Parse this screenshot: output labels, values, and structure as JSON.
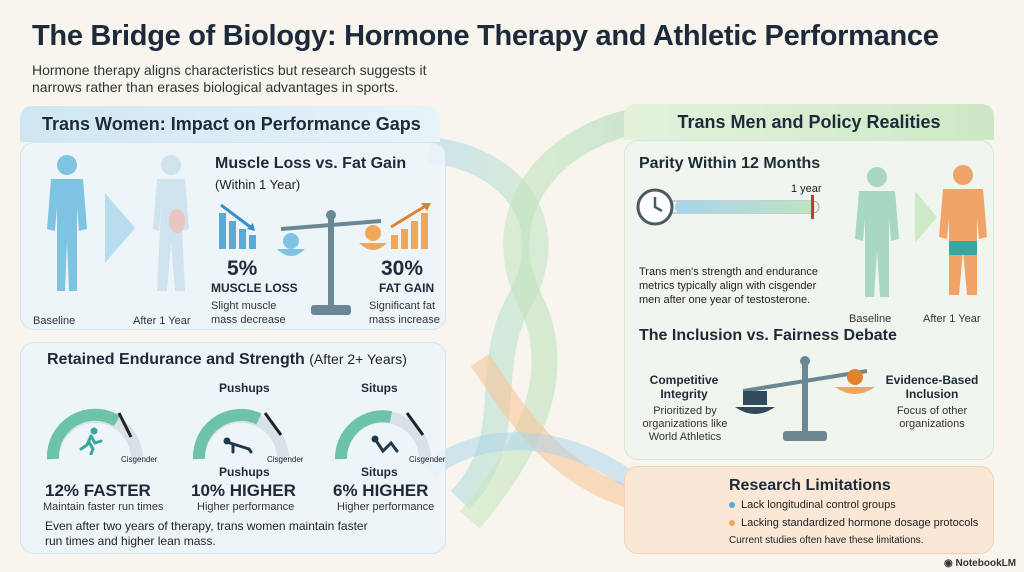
{
  "header": {
    "title": "The Bridge of Biology: Hormone Therapy and Athletic Performance",
    "subtitle": "Hormone therapy aligns characteristics but research suggests it narrows rather than erases biological advantages in sports."
  },
  "left": {
    "title": "Trans Women: Impact on Performance Gaps",
    "baseline_label": "Baseline",
    "after_label": "After 1 Year",
    "muscle_fat": {
      "title": "Muscle Loss vs. Fat Gain",
      "subtitle": "(Within 1 Year)",
      "loss_value": "5%",
      "loss_label": "MUSCLE LOSS",
      "loss_desc": "Slight muscle mass decrease",
      "gain_value": "30%",
      "gain_label": "FAT GAIN",
      "gain_desc": "Significant fat mass increase"
    },
    "retained": {
      "title": "Retained Endurance and Strength",
      "title_suffix": "(After 2+ Years)",
      "gauges": [
        {
          "top_label": "",
          "cis_label": "Cisgender",
          "bottom_label": "",
          "value": "12% FASTER",
          "desc": "Maintain faster run times",
          "icon": "runner-icon"
        },
        {
          "top_label": "Pushups",
          "cis_label": "Cisgender",
          "bottom_label": "Pushups",
          "value": "10% HIGHER",
          "desc": "Higher performance",
          "icon": "pushup-icon"
        },
        {
          "top_label": "Situps",
          "cis_label": "Cisgender",
          "bottom_label": "Situps",
          "value": "6% HIGHER",
          "desc": "Higher performance",
          "icon": "situp-icon"
        }
      ],
      "footer": "Even after two years of therapy, trans women maintain faster run times and higher lean mass."
    }
  },
  "right": {
    "title": "Trans Men and Policy Realities",
    "parity": {
      "title": "Parity Within 12 Months",
      "timeline_label": "1 year",
      "desc": "Trans men's strength and endurance metrics typically align with cisgender men after one year of testosterone.",
      "baseline_label": "Baseline",
      "after_label": "After 1 Year"
    },
    "debate": {
      "title": "The Inclusion vs. Fairness Debate",
      "left_title": "Competitive Integrity",
      "left_desc": "Prioritized by organizations like World Athletics",
      "right_title": "Evidence-Based Inclusion",
      "right_desc": "Focus of other organizations"
    },
    "limitations": {
      "title": "Research Limitations",
      "items": [
        "Lack longitudinal control groups",
        "Lacking standardized hormone dosage protocols"
      ],
      "footer": "Current studies often have these limitations."
    }
  },
  "brand": "NotebookLM",
  "colors": {
    "blue": "#5aa9d6",
    "green": "#8fcf86",
    "orange": "#f2a65a",
    "teal": "#3aa6a0"
  }
}
